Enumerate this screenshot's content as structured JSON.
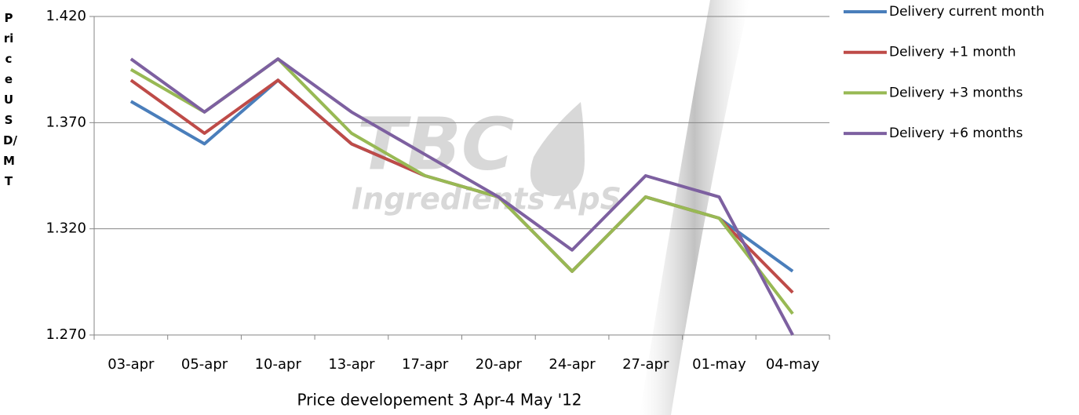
{
  "chart_data": {
    "type": "line",
    "watermark": "TBC",
    "watermark_sub": "Ingredients ApS",
    "y_label": "Price USD/MT",
    "x_label": "Price developement 3 Apr-4 May '12",
    "categories": [
      "03-apr",
      "05-apr",
      "10-apr",
      "13-apr",
      "17-apr",
      "20-apr",
      "24-apr",
      "27-apr",
      "01-may",
      "04-may"
    ],
    "series": [
      {
        "name": "Delivery current month",
        "color": "#4a7ebb",
        "values": [
          1.38,
          1.36,
          1.39,
          1.36,
          1.345,
          1.335,
          1.3,
          1.335,
          1.325,
          1.3
        ]
      },
      {
        "name": "Delivery +1 month",
        "color": "#be4b48",
        "values": [
          1.39,
          1.365,
          1.39,
          1.36,
          1.345,
          1.335,
          1.3,
          1.335,
          1.325,
          1.29
        ]
      },
      {
        "name": "Delivery +3 months",
        "color": "#98b954",
        "values": [
          1.395,
          1.375,
          1.4,
          1.365,
          1.345,
          1.335,
          1.3,
          1.335,
          1.325,
          1.28
        ]
      },
      {
        "name": "Delivery +6 months",
        "color": "#7d60a0",
        "values": [
          1.4,
          1.375,
          1.4,
          1.375,
          1.355,
          1.335,
          1.31,
          1.345,
          1.335,
          1.27
        ]
      }
    ],
    "ylim": [
      1.27,
      1.42
    ],
    "yticks": [
      {
        "value": 1.27,
        "label": "1.270"
      },
      {
        "value": 1.32,
        "label": "1.320"
      },
      {
        "value": 1.37,
        "label": "1.370"
      },
      {
        "value": 1.42,
        "label": "1.420"
      }
    ],
    "grid": true,
    "legend": "right"
  }
}
